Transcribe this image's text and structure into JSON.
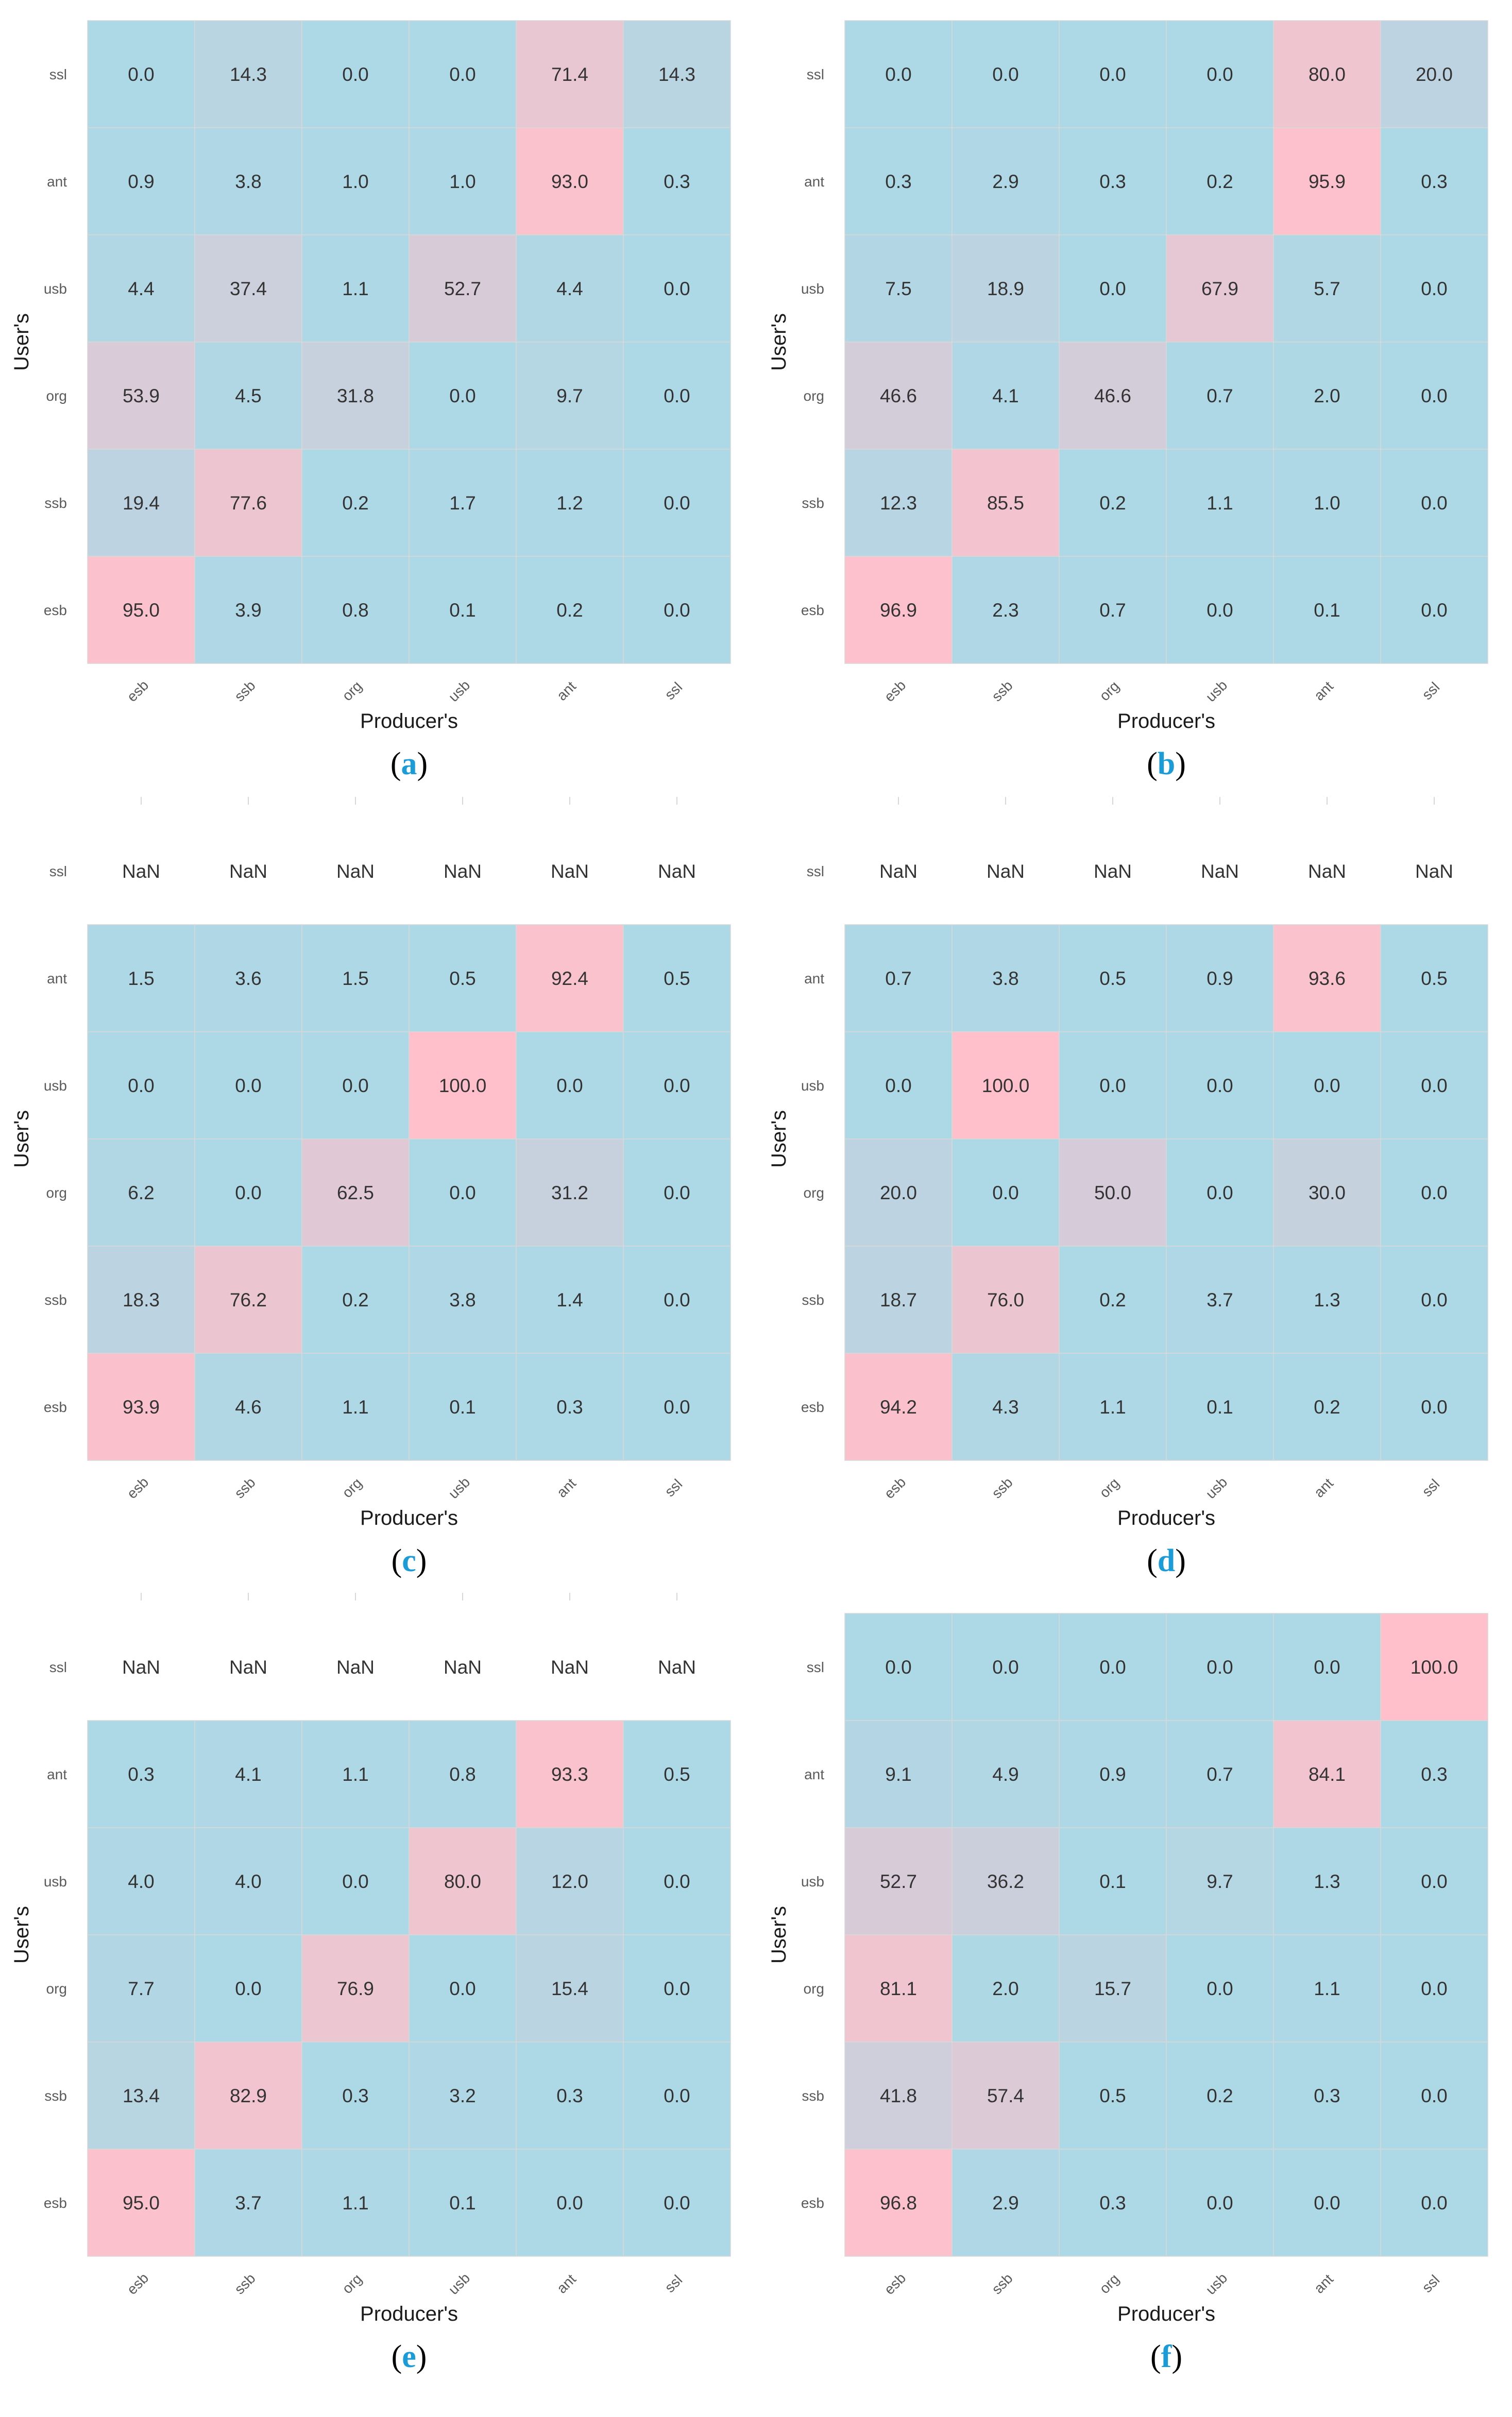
{
  "figure": {
    "colors": {
      "low": "#add8e6",
      "high": "#ffc0cb",
      "grid": "#d8d8d8",
      "nan_bg": "#ffffff"
    }
  },
  "chart_data": [
    {
      "type": "heatmap",
      "panel": "a",
      "xlabel": "Producer's",
      "ylabel": "User's",
      "x_categories": [
        "esb",
        "ssb",
        "org",
        "usb",
        "ant",
        "ssl"
      ],
      "y_categories_top_to_bottom": [
        "ssl",
        "ant",
        "usb",
        "org",
        "ssb",
        "esb"
      ],
      "values": [
        [
          "0.0",
          "14.3",
          "0.0",
          "0.0",
          "71.4",
          "14.3"
        ],
        [
          "0.9",
          "3.8",
          "1.0",
          "1.0",
          "93.0",
          "0.3"
        ],
        [
          "4.4",
          "37.4",
          "1.1",
          "52.7",
          "4.4",
          "0.0"
        ],
        [
          "53.9",
          "4.5",
          "31.8",
          "0.0",
          "9.7",
          "0.0"
        ],
        [
          "19.4",
          "77.6",
          "0.2",
          "1.7",
          "1.2",
          "0.0"
        ],
        [
          "95.0",
          "3.9",
          "0.8",
          "0.1",
          "0.2",
          "0.0"
        ]
      ]
    },
    {
      "type": "heatmap",
      "panel": "b",
      "xlabel": "Producer's",
      "ylabel": "User's",
      "x_categories": [
        "esb",
        "ssb",
        "org",
        "usb",
        "ant",
        "ssl"
      ],
      "y_categories_top_to_bottom": [
        "ssl",
        "ant",
        "usb",
        "org",
        "ssb",
        "esb"
      ],
      "values": [
        [
          "0.0",
          "0.0",
          "0.0",
          "0.0",
          "80.0",
          "20.0"
        ],
        [
          "0.3",
          "2.9",
          "0.3",
          "0.2",
          "95.9",
          "0.3"
        ],
        [
          "7.5",
          "18.9",
          "0.0",
          "67.9",
          "5.7",
          "0.0"
        ],
        [
          "46.6",
          "4.1",
          "46.6",
          "0.7",
          "2.0",
          "0.0"
        ],
        [
          "12.3",
          "85.5",
          "0.2",
          "1.1",
          "1.0",
          "0.0"
        ],
        [
          "96.9",
          "2.3",
          "0.7",
          "0.0",
          "0.1",
          "0.0"
        ]
      ]
    },
    {
      "type": "heatmap",
      "panel": "c",
      "xlabel": "Producer's",
      "ylabel": "User's",
      "x_categories": [
        "esb",
        "ssb",
        "org",
        "usb",
        "ant",
        "ssl"
      ],
      "y_categories_top_to_bottom": [
        "ssl",
        "ant",
        "usb",
        "org",
        "ssb",
        "esb"
      ],
      "values": [
        [
          "NaN",
          "NaN",
          "NaN",
          "NaN",
          "NaN",
          "NaN"
        ],
        [
          "1.5",
          "3.6",
          "1.5",
          "0.5",
          "92.4",
          "0.5"
        ],
        [
          "0.0",
          "0.0",
          "0.0",
          "100.0",
          "0.0",
          "0.0"
        ],
        [
          "6.2",
          "0.0",
          "62.5",
          "0.0",
          "31.2",
          "0.0"
        ],
        [
          "18.3",
          "76.2",
          "0.2",
          "3.8",
          "1.4",
          "0.0"
        ],
        [
          "93.9",
          "4.6",
          "1.1",
          "0.1",
          "0.3",
          "0.0"
        ]
      ]
    },
    {
      "type": "heatmap",
      "panel": "d",
      "xlabel": "Producer's",
      "ylabel": "User's",
      "x_categories": [
        "esb",
        "ssb",
        "org",
        "usb",
        "ant",
        "ssl"
      ],
      "y_categories_top_to_bottom": [
        "ssl",
        "ant",
        "usb",
        "org",
        "ssb",
        "esb"
      ],
      "values": [
        [
          "NaN",
          "NaN",
          "NaN",
          "NaN",
          "NaN",
          "NaN"
        ],
        [
          "0.7",
          "3.8",
          "0.5",
          "0.9",
          "93.6",
          "0.5"
        ],
        [
          "0.0",
          "100.0",
          "0.0",
          "0.0",
          "0.0",
          "0.0"
        ],
        [
          "20.0",
          "0.0",
          "50.0",
          "0.0",
          "30.0",
          "0.0"
        ],
        [
          "18.7",
          "76.0",
          "0.2",
          "3.7",
          "1.3",
          "0.0"
        ],
        [
          "94.2",
          "4.3",
          "1.1",
          "0.1",
          "0.2",
          "0.0"
        ]
      ]
    },
    {
      "type": "heatmap",
      "panel": "e",
      "xlabel": "Producer's",
      "ylabel": "User's",
      "x_categories": [
        "esb",
        "ssb",
        "org",
        "usb",
        "ant",
        "ssl"
      ],
      "y_categories_top_to_bottom": [
        "ssl",
        "ant",
        "usb",
        "org",
        "ssb",
        "esb"
      ],
      "values": [
        [
          "NaN",
          "NaN",
          "NaN",
          "NaN",
          "NaN",
          "NaN"
        ],
        [
          "0.3",
          "4.1",
          "1.1",
          "0.8",
          "93.3",
          "0.5"
        ],
        [
          "4.0",
          "4.0",
          "0.0",
          "80.0",
          "12.0",
          "0.0"
        ],
        [
          "7.7",
          "0.0",
          "76.9",
          "0.0",
          "15.4",
          "0.0"
        ],
        [
          "13.4",
          "82.9",
          "0.3",
          "3.2",
          "0.3",
          "0.0"
        ],
        [
          "95.0",
          "3.7",
          "1.1",
          "0.1",
          "0.0",
          "0.0"
        ]
      ]
    },
    {
      "type": "heatmap",
      "panel": "f",
      "xlabel": "Producer's",
      "ylabel": "User's",
      "x_categories": [
        "esb",
        "ssb",
        "org",
        "usb",
        "ant",
        "ssl"
      ],
      "y_categories_top_to_bottom": [
        "ssl",
        "ant",
        "usb",
        "org",
        "ssb",
        "esb"
      ],
      "values": [
        [
          "0.0",
          "0.0",
          "0.0",
          "0.0",
          "0.0",
          "100.0"
        ],
        [
          "9.1",
          "4.9",
          "0.9",
          "0.7",
          "84.1",
          "0.3"
        ],
        [
          "52.7",
          "36.2",
          "0.1",
          "9.7",
          "1.3",
          "0.0"
        ],
        [
          "81.1",
          "2.0",
          "15.7",
          "0.0",
          "1.1",
          "0.0"
        ],
        [
          "41.8",
          "57.4",
          "0.5",
          "0.2",
          "0.3",
          "0.0"
        ],
        [
          "96.8",
          "2.9",
          "0.3",
          "0.0",
          "0.0",
          "0.0"
        ]
      ]
    }
  ]
}
